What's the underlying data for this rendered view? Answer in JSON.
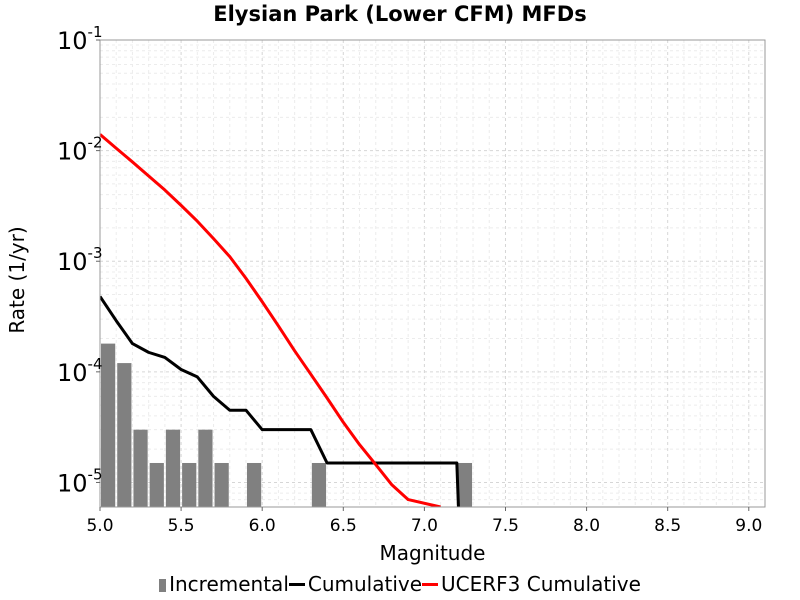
{
  "title": "Elysian Park (Lower CFM) MFDs",
  "chart_data": {
    "type": "bar",
    "title": "Elysian Park (Lower CFM) MFDs",
    "xlabel": "Magnitude",
    "ylabel": "Rate (1/yr)",
    "xlim": [
      5.0,
      9.1
    ],
    "ylim": [
      6e-06,
      0.1
    ],
    "yscale": "log",
    "grid": true,
    "legend_position": "bottom",
    "x_ticks": [
      "5.0",
      "5.5",
      "6.0",
      "6.5",
      "7.0",
      "7.5",
      "8.0",
      "8.5",
      "9.0"
    ],
    "y_ticks": [
      {
        "base": "10",
        "exp": "-1",
        "value": 0.1
      },
      {
        "base": "10",
        "exp": "-2",
        "value": 0.01
      },
      {
        "base": "10",
        "exp": "-3",
        "value": 0.001
      },
      {
        "base": "10",
        "exp": "-4",
        "value": 0.0001
      },
      {
        "base": "10",
        "exp": "-5",
        "value": 1e-05
      }
    ],
    "series": [
      {
        "name": "Incremental",
        "type": "bar",
        "color": "#808080",
        "bar_width": 0.1,
        "points": [
          {
            "x": 5.05,
            "y": 0.00018
          },
          {
            "x": 5.15,
            "y": 0.00012
          },
          {
            "x": 5.25,
            "y": 3e-05
          },
          {
            "x": 5.35,
            "y": 1.5e-05
          },
          {
            "x": 5.45,
            "y": 3e-05
          },
          {
            "x": 5.55,
            "y": 1.5e-05
          },
          {
            "x": 5.65,
            "y": 3e-05
          },
          {
            "x": 5.75,
            "y": 1.5e-05
          },
          {
            "x": 5.95,
            "y": 1.5e-05
          },
          {
            "x": 6.35,
            "y": 1.5e-05
          },
          {
            "x": 7.25,
            "y": 1.5e-05
          }
        ]
      },
      {
        "name": "Cumulative",
        "type": "line",
        "color": "#000000",
        "points": [
          {
            "x": 5.0,
            "y": 0.00048
          },
          {
            "x": 5.1,
            "y": 0.00029
          },
          {
            "x": 5.2,
            "y": 0.00018
          },
          {
            "x": 5.3,
            "y": 0.00015
          },
          {
            "x": 5.4,
            "y": 0.000135
          },
          {
            "x": 5.5,
            "y": 0.000105
          },
          {
            "x": 5.6,
            "y": 9e-05
          },
          {
            "x": 5.7,
            "y": 6e-05
          },
          {
            "x": 5.8,
            "y": 4.5e-05
          },
          {
            "x": 5.9,
            "y": 4.5e-05
          },
          {
            "x": 6.0,
            "y": 3e-05
          },
          {
            "x": 6.1,
            "y": 3e-05
          },
          {
            "x": 6.2,
            "y": 3e-05
          },
          {
            "x": 6.3,
            "y": 3e-05
          },
          {
            "x": 6.4,
            "y": 1.5e-05
          },
          {
            "x": 7.2,
            "y": 1.5e-05
          },
          {
            "x": 7.21,
            "y": 5e-06
          }
        ]
      },
      {
        "name": "UCERF3 Cumulative",
        "type": "line",
        "color": "#ff0000",
        "points": [
          {
            "x": 5.0,
            "y": 0.014
          },
          {
            "x": 5.1,
            "y": 0.0105
          },
          {
            "x": 5.2,
            "y": 0.0079
          },
          {
            "x": 5.3,
            "y": 0.0059
          },
          {
            "x": 5.4,
            "y": 0.0044
          },
          {
            "x": 5.5,
            "y": 0.0032
          },
          {
            "x": 5.6,
            "y": 0.0023
          },
          {
            "x": 5.7,
            "y": 0.0016
          },
          {
            "x": 5.8,
            "y": 0.0011
          },
          {
            "x": 5.9,
            "y": 0.0007
          },
          {
            "x": 6.0,
            "y": 0.00043
          },
          {
            "x": 6.1,
            "y": 0.00026
          },
          {
            "x": 6.2,
            "y": 0.000155
          },
          {
            "x": 6.3,
            "y": 9.5e-05
          },
          {
            "x": 6.4,
            "y": 5.8e-05
          },
          {
            "x": 6.5,
            "y": 3.5e-05
          },
          {
            "x": 6.6,
            "y": 2.2e-05
          },
          {
            "x": 6.7,
            "y": 1.45e-05
          },
          {
            "x": 6.8,
            "y": 9.5e-06
          },
          {
            "x": 6.9,
            "y": 7e-06
          },
          {
            "x": 7.1,
            "y": 5.8e-06
          }
        ]
      }
    ]
  },
  "legend": {
    "incremental": "Incremental",
    "cumulative": "Cumulative",
    "ucerf3": "UCERF3 Cumulative"
  }
}
